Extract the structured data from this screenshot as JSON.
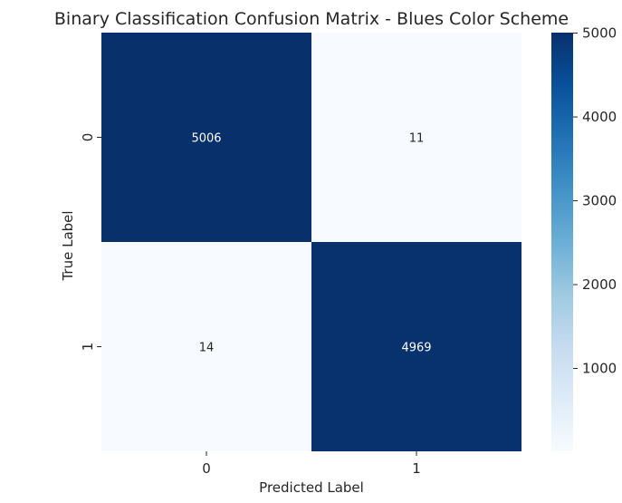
{
  "chart_data": {
    "type": "heatmap",
    "title": "Binary Classification Confusion Matrix - Blues Color Scheme",
    "xlabel": "Predicted Label",
    "ylabel": "True Label",
    "x_categories": [
      "0",
      "1"
    ],
    "y_categories": [
      "0",
      "1"
    ],
    "values": [
      [
        5006,
        11
      ],
      [
        14,
        4969
      ]
    ],
    "colormap": "Blues",
    "color_range": [
      11,
      5006
    ],
    "colorbar_ticks": [
      1000,
      2000,
      3000,
      4000,
      5000
    ],
    "annotations": true,
    "grid": false,
    "legend": "colorbar-right"
  }
}
